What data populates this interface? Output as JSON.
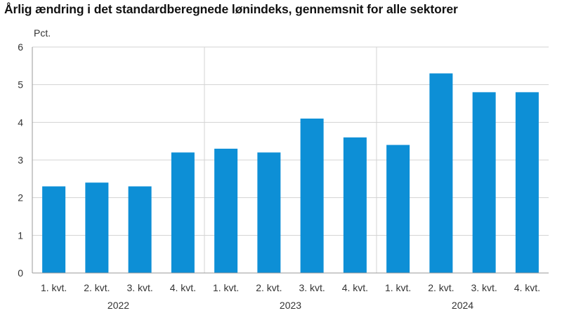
{
  "chart_data": {
    "type": "bar",
    "title": "Årlig ændring i det standardberegnede lønindeks, gennemsnit for alle sektorer",
    "ylabel": "Pct.",
    "xlabel": "",
    "ylim": [
      0,
      6
    ],
    "yticks": [
      "0",
      "1",
      "2",
      "3",
      "4",
      "5",
      "6"
    ],
    "grid": true,
    "categories": [
      "1. kvt.",
      "2. kvt.",
      "3. kvt.",
      "4. kvt.",
      "1. kvt.",
      "2. kvt.",
      "3. kvt.",
      "4. kvt.",
      "1. kvt.",
      "2. kvt.",
      "3. kvt.",
      "4. kvt."
    ],
    "groups": [
      "2022",
      "2023",
      "2024"
    ],
    "values": [
      2.3,
      2.4,
      2.3,
      3.2,
      3.3,
      3.2,
      4.1,
      3.6,
      3.4,
      5.3,
      4.8,
      4.8
    ],
    "colors": {
      "bar": "#0d8fd6",
      "grid": "#d3d3d3",
      "axis": "#9a9a9a"
    }
  }
}
